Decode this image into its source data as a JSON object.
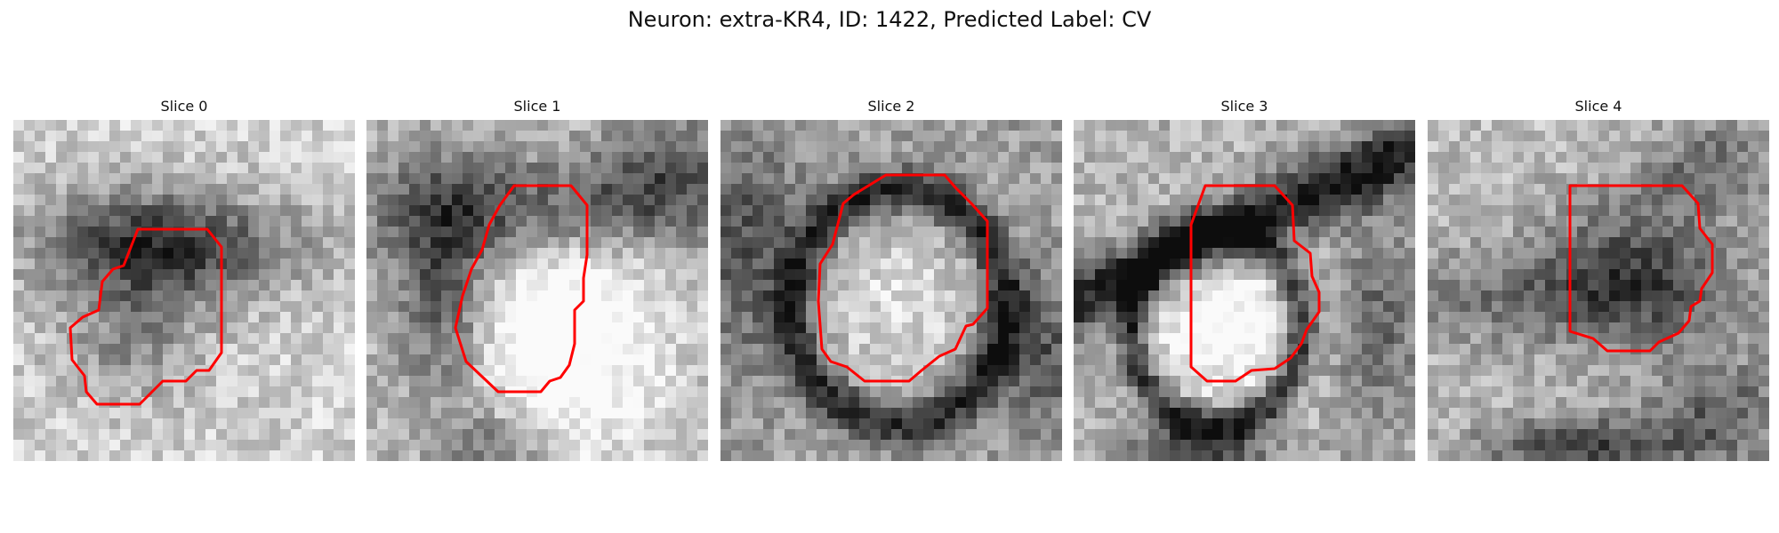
{
  "figure": {
    "title": "Neuron: extra-KR4, ID: 1422, Predicted Label: CV"
  },
  "slices": [
    {
      "title": "Slice 0",
      "outline_color": "#ff0000"
    },
    {
      "title": "Slice 1",
      "outline_color": "#ff0000"
    },
    {
      "title": "Slice 2",
      "outline_color": "#ff0000"
    },
    {
      "title": "Slice 3",
      "outline_color": "#ff0000"
    },
    {
      "title": "Slice 4",
      "outline_color": "#ff0000"
    }
  ]
}
